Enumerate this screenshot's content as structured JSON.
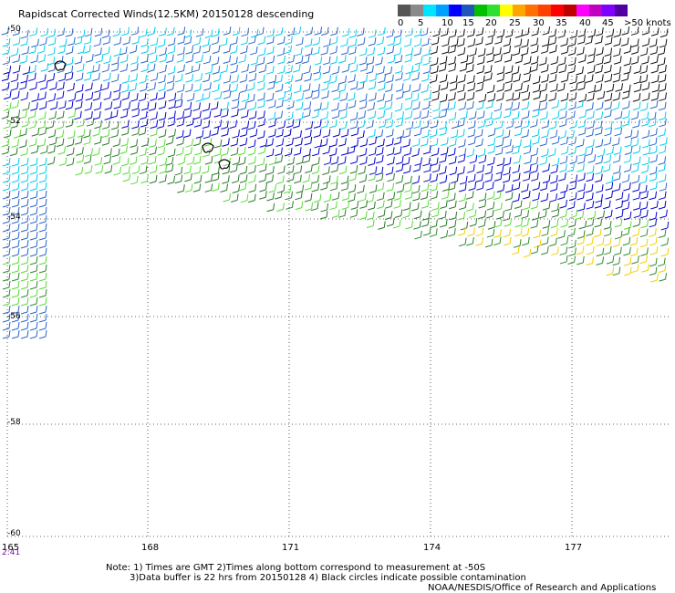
{
  "title": "Rapidscat Corrected Winds(12.5KM) 20150128 descending",
  "legend": {
    "colors": [
      "#555555",
      "#8a8a8a",
      "#00e5ff",
      "#00a0ff",
      "#0000ff",
      "#2255bb",
      "#00c000",
      "#30e030",
      "#ffff00",
      "#ffa500",
      "#ff7000",
      "#ff4000",
      "#ff0000",
      "#c00000",
      "#ff00ff",
      "#c000c0",
      "#8000ff",
      "#5000a0"
    ],
    "labels": [
      "0",
      "5",
      "10",
      "15",
      "20",
      "25",
      "30",
      "35",
      "40",
      "45",
      ">50 knots"
    ]
  },
  "lat_labels": [
    "-50",
    "-52",
    "-54",
    "-56",
    "-58",
    "-60"
  ],
  "lon_labels": [
    "165",
    "168",
    "171",
    "174",
    "177"
  ],
  "time_label": "2:41",
  "notes": {
    "line1": "Note: 1) Times are GMT 2)Times along bottom correspond to measurement at -50S",
    "line2": "3)Data buffer is 22 hrs from 20150128 4) Black circles indicate possible contamination",
    "line3": "NOAA/NESDIS/Office of Research and Applications"
  }
}
